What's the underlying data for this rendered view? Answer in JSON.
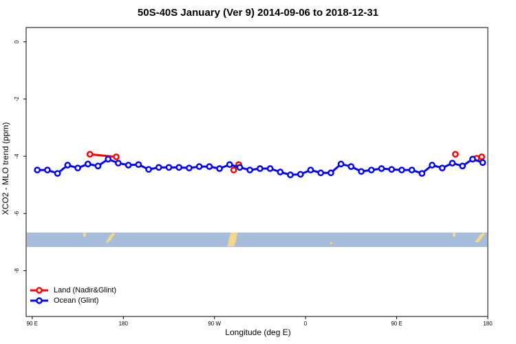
{
  "chart_data": {
    "type": "line",
    "title": "50S-40S January (Ver 9)   2014-09-06 to 2018-12-31",
    "xlabel": "Longitude (deg E)",
    "ylabel": "XCO2 - MLO trend (ppm)",
    "xlim": [
      84,
      540
    ],
    "ylim": [
      -9.6,
      0.5
    ],
    "xticks": [
      {
        "value": 90,
        "label": "90 E"
      },
      {
        "value": 180,
        "label": "180"
      },
      {
        "value": 270,
        "label": "90 W"
      },
      {
        "value": 360,
        "label": "0"
      },
      {
        "value": 450,
        "label": "90 E"
      },
      {
        "value": 540,
        "label": "180"
      }
    ],
    "yticks": [
      0,
      -2,
      -4,
      -6,
      -8
    ],
    "legend": "bottom-left",
    "series": [
      {
        "name": "Land (Nadir&Glint)",
        "color": "#ff0000",
        "x": [
          147,
          173,
          null,
          289,
          294,
          null,
          508,
          null,
          529,
          534
        ],
        "values": [
          -3.93,
          -4.02,
          null,
          -4.48,
          -4.29,
          null,
          -3.93,
          null,
          -4.07,
          -4.02
        ]
      },
      {
        "name": "Ocean (Glint)",
        "color": "#0000ff",
        "x": [
          95,
          105,
          115,
          125,
          135,
          145,
          155,
          165,
          175,
          185,
          195,
          205,
          215,
          225,
          235,
          245,
          255,
          265,
          275,
          285,
          295,
          305,
          315,
          325,
          335,
          345,
          355,
          365,
          375,
          385,
          395,
          405,
          415,
          425,
          435,
          445,
          455,
          465,
          475,
          485,
          495,
          505,
          515,
          525,
          535
        ],
        "values": [
          -4.48,
          -4.48,
          -4.6,
          -4.31,
          -4.41,
          -4.27,
          -4.34,
          -4.1,
          -4.24,
          -4.31,
          -4.29,
          -4.46,
          -4.39,
          -4.39,
          -4.39,
          -4.41,
          -4.36,
          -4.36,
          -4.43,
          -4.29,
          -4.39,
          -4.48,
          -4.43,
          -4.43,
          -4.55,
          -4.65,
          -4.63,
          -4.48,
          -4.58,
          -4.58,
          -4.27,
          -4.36,
          -4.53,
          -4.48,
          -4.43,
          -4.46,
          -4.48,
          -4.48,
          -4.6,
          -4.31,
          -4.41,
          -4.24,
          -4.34,
          -4.1,
          -4.22
        ]
      }
    ]
  }
}
